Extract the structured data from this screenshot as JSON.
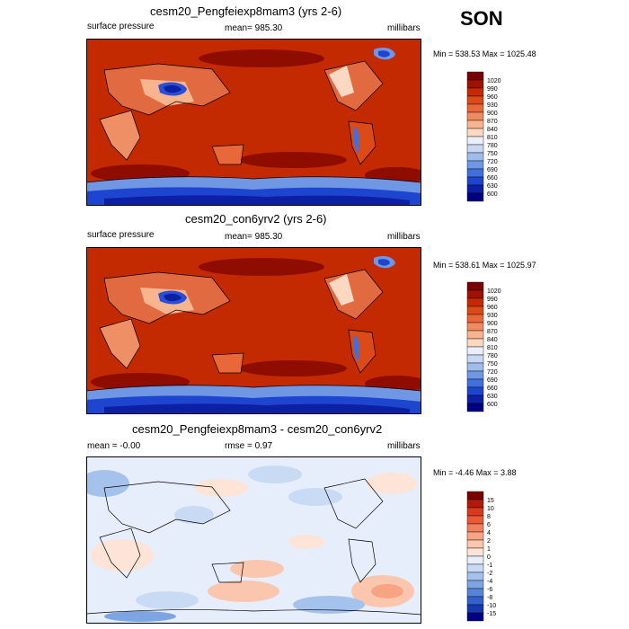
{
  "season": "SON",
  "panels": [
    {
      "title": "cesm20_Pengfeiexp8mam3 (yrs 2-6)",
      "left_label": "surface pressure",
      "center_label": "mean= 985.30",
      "right_label": "millibars",
      "range_label": "Min = 538.53 Max = 1025.48",
      "colorbar": {
        "labels": [
          "1020",
          "990",
          "960",
          "930",
          "900",
          "870",
          "840",
          "810",
          "780",
          "750",
          "720",
          "690",
          "660",
          "630",
          "600"
        ],
        "colors": [
          "#7a0000",
          "#a01200",
          "#c52a00",
          "#dc4a18",
          "#e8683a",
          "#f08b60",
          "#f6b48f",
          "#fad8c2",
          "#eaf0fb",
          "#c8d8f3",
          "#9fbcec",
          "#6f97e4",
          "#416fdb",
          "#1d45cf",
          "#0d1fa3",
          "#000080"
        ]
      }
    },
    {
      "title": "cesm20_con6yrv2 (yrs 2-6)",
      "left_label": "surface pressure",
      "center_label": "mean= 985.30",
      "right_label": "millibars",
      "range_label": "Min = 538.61 Max = 1025.97",
      "colorbar": {
        "labels": [
          "1020",
          "990",
          "960",
          "930",
          "900",
          "870",
          "840",
          "810",
          "780",
          "750",
          "720",
          "690",
          "660",
          "630",
          "600"
        ],
        "colors": [
          "#7a0000",
          "#a01200",
          "#c52a00",
          "#dc4a18",
          "#e8683a",
          "#f08b60",
          "#f6b48f",
          "#fad8c2",
          "#eaf0fb",
          "#c8d8f3",
          "#9fbcec",
          "#6f97e4",
          "#416fdb",
          "#1d45cf",
          "#0d1fa3",
          "#000080"
        ]
      }
    },
    {
      "title": "cesm20_Pengfeiexp8mam3 - cesm20_con6yrv2",
      "left_label": "mean =  -0.00",
      "center_label": "rmse =   0.97",
      "right_label": "millibars",
      "range_label": "Min =  -4.46 Max =   3.88",
      "colorbar": {
        "labels": [
          "15",
          "10",
          "8",
          "6",
          "4",
          "2",
          "1",
          "0",
          "-1",
          "-2",
          "-4",
          "-6",
          "-8",
          "-10",
          "-15"
        ],
        "colors": [
          "#7a0000",
          "#b41a0a",
          "#d9391e",
          "#ea5a3a",
          "#f27f5e",
          "#f7a485",
          "#fac6ad",
          "#fde4d6",
          "#e6eefb",
          "#c9dbf4",
          "#a5c2ed",
          "#7da4e3",
          "#5784d8",
          "#3361cc",
          "#1838b0",
          "#000080"
        ]
      }
    }
  ]
}
